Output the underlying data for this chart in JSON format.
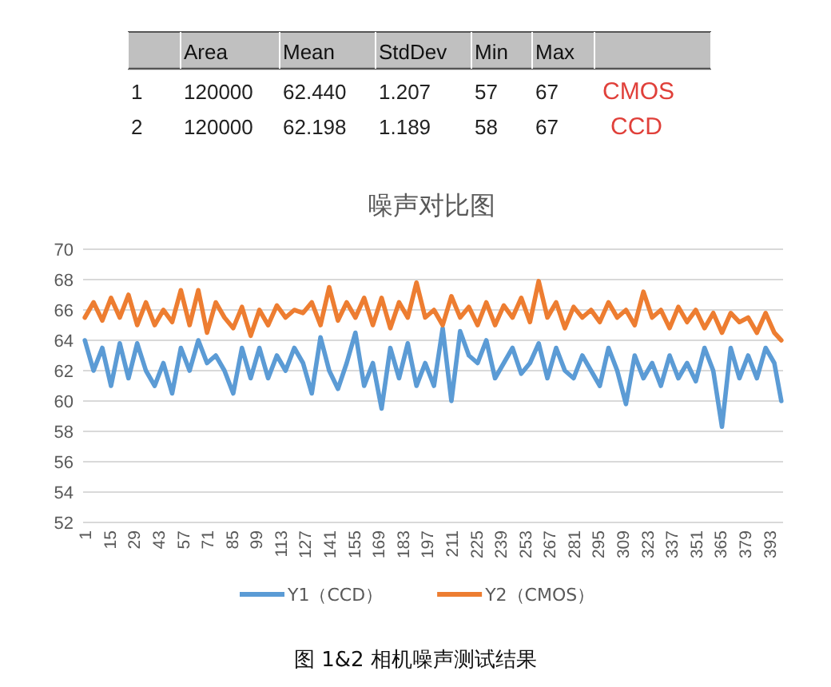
{
  "chart_data": [
    {
      "type": "other",
      "categories": [
        null,
        "Area",
        "Mean",
        "StdDev",
        "Min",
        "Max",
        null
      ],
      "annotations": [
        "1",
        "120000",
        "62.440",
        "1.207",
        "57",
        "67",
        "CMOS",
        "2",
        "120000",
        "62.198",
        "1.189",
        "58",
        "67",
        "CCD"
      ]
    },
    {
      "type": "line",
      "title": "噪声对比图",
      "x": [
        1,
        6,
        11,
        16,
        21,
        26,
        31,
        36,
        41,
        46,
        51,
        56,
        61,
        66,
        71,
        76,
        81,
        86,
        91,
        96,
        101,
        106,
        111,
        116,
        121,
        126,
        131,
        136,
        141,
        146,
        151,
        156,
        161,
        166,
        171,
        176,
        181,
        186,
        191,
        196,
        201,
        206,
        211,
        216,
        221,
        226,
        231,
        236,
        241,
        246,
        251,
        256,
        261,
        266,
        271,
        276,
        281,
        286,
        291,
        296,
        301,
        306,
        311,
        316,
        321,
        326,
        331,
        336,
        341,
        346,
        351,
        356,
        361,
        366,
        371,
        376,
        381,
        386,
        391,
        396,
        400
      ],
      "series": [
        {
          "name": "Y1（CCD）",
          "color": "#5b9bd5",
          "values": [
            64,
            62,
            63.5,
            61,
            63.8,
            61.5,
            63.8,
            62,
            61,
            62.5,
            60.5,
            63.5,
            62,
            64,
            62.5,
            63,
            62,
            60.5,
            63.5,
            61.5,
            63.5,
            61.5,
            63,
            62,
            63.5,
            62.5,
            60.5,
            64.2,
            62,
            60.8,
            62.5,
            64.5,
            61,
            62.5,
            59.5,
            63.5,
            61.5,
            63.8,
            61,
            62.5,
            61,
            64.8,
            60,
            64.6,
            63,
            62.5,
            64,
            61.5,
            62.5,
            63.5,
            61.8,
            62.5,
            63.8,
            61.5,
            63.5,
            62,
            61.5,
            63,
            62,
            61,
            63.5,
            62,
            59.8,
            63,
            61.5,
            62.5,
            61,
            63,
            61.5,
            62.5,
            61.3,
            63.5,
            62,
            58.3,
            63.5,
            61.5,
            63,
            61.5,
            63.5,
            62.5,
            60
          ]
        },
        {
          "name": "Y2（CMOS）",
          "color": "#ed7d31",
          "values": [
            65.5,
            66.5,
            65.3,
            66.8,
            65.5,
            67,
            65,
            66.5,
            65,
            66,
            65.2,
            67.3,
            65,
            67.3,
            64.5,
            66.5,
            65.5,
            64.8,
            66.2,
            64.3,
            66,
            65,
            66.3,
            65.5,
            66,
            65.8,
            66.5,
            65,
            67.5,
            65.3,
            66.5,
            65.5,
            66.8,
            65,
            66.8,
            64.8,
            66.5,
            65.5,
            67.8,
            65.5,
            66,
            65,
            66.9,
            65.5,
            66.2,
            65,
            66.5,
            65,
            66.3,
            65.5,
            66.8,
            65.2,
            67.9,
            65.5,
            66.5,
            64.8,
            66.2,
            65.5,
            66,
            65.2,
            66.5,
            65.5,
            66,
            65,
            67.2,
            65.5,
            66,
            64.8,
            66.2,
            65.2,
            66,
            64.8,
            65.8,
            64.5,
            65.8,
            65.2,
            65.5,
            64.5,
            65.8,
            64.5,
            64
          ]
        }
      ],
      "xlim": [
        0,
        401
      ],
      "xticks": [
        1,
        15,
        29,
        43,
        57,
        71,
        85,
        99,
        113,
        127,
        141,
        155,
        169,
        183,
        197,
        211,
        225,
        239,
        253,
        267,
        281,
        295,
        309,
        323,
        337,
        351,
        365,
        379,
        393
      ],
      "ylim": [
        52,
        70
      ],
      "yticks": [
        52,
        54,
        56,
        58,
        60,
        62,
        64,
        66,
        68,
        70
      ],
      "grid": "y",
      "legend": "bottom",
      "line_style": "solid",
      "marker": "none",
      "annotations": [
        "图 1&2 相机噪声测试结果"
      ]
    }
  ]
}
